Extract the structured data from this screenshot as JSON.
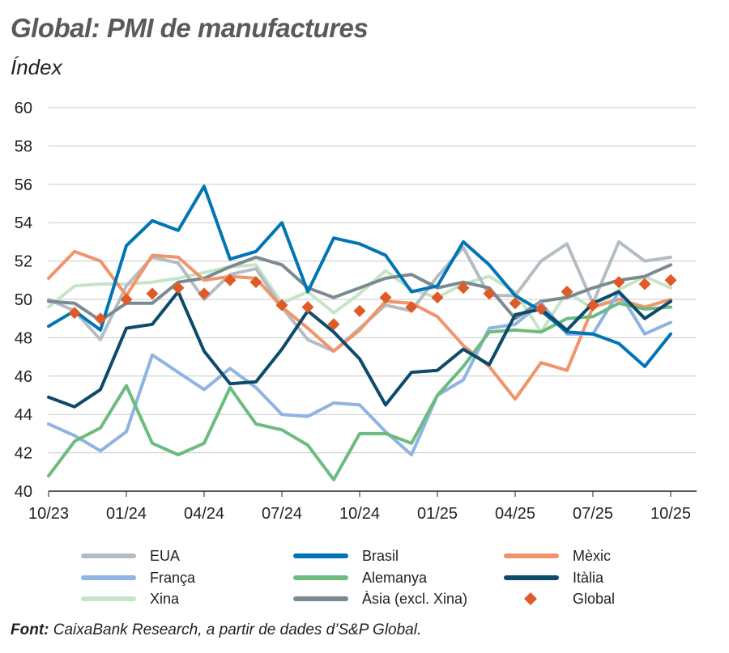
{
  "title": "Global: PMI de manufactures",
  "subtitle": "Índex",
  "source": {
    "label": "Font:",
    "text": "CaixaBank Research, a partir de dades d’S&P Global."
  },
  "chart_data": {
    "type": "line",
    "title": "Global: PMI de manufactures",
    "ylabel": "Índex",
    "ylim": [
      40,
      60
    ],
    "yticks": [
      40,
      42,
      44,
      46,
      48,
      50,
      52,
      54,
      56,
      58,
      60
    ],
    "grid": true,
    "legend_position": "bottom",
    "x": [
      "10/23",
      "11/23",
      "12/23",
      "01/24",
      "02/24",
      "03/24",
      "04/24",
      "05/24",
      "06/24",
      "07/24",
      "08/24",
      "09/24",
      "10/24",
      "11/24",
      "12/24",
      "01/25",
      "02/25",
      "03/25",
      "04/25",
      "05/25",
      "06/25",
      "07/25",
      "08/25",
      "09/25",
      "10/25"
    ],
    "xtick_labels": [
      "10/23",
      "01/24",
      "04/24",
      "07/24",
      "10/24",
      "01/25",
      "04/25",
      "07/25",
      "10/25"
    ],
    "series": [
      {
        "name": "EUA",
        "color": "#b3bec4",
        "values": [
          50.0,
          49.4,
          47.9,
          50.7,
          52.2,
          51.9,
          50.0,
          51.3,
          51.6,
          49.6,
          47.9,
          47.3,
          48.5,
          49.7,
          49.4,
          51.2,
          52.7,
          50.2,
          50.2,
          52.0,
          52.9,
          49.8,
          53.0,
          52.0,
          52.2
        ]
      },
      {
        "name": "Brasil",
        "color": "#0075b5",
        "values": [
          48.6,
          49.4,
          48.4,
          52.8,
          54.1,
          53.6,
          55.9,
          52.1,
          52.5,
          54.0,
          50.4,
          53.2,
          52.9,
          52.3,
          50.4,
          50.7,
          53.0,
          51.8,
          50.2,
          49.4,
          48.3,
          48.2,
          47.7,
          46.5,
          48.2
        ]
      },
      {
        "name": "Mèxic",
        "color": "#f0946a",
        "values": [
          51.1,
          52.5,
          52.0,
          50.2,
          52.3,
          52.2,
          51.0,
          51.2,
          51.1,
          49.6,
          48.5,
          47.3,
          48.4,
          49.9,
          49.8,
          49.1,
          47.6,
          46.5,
          44.8,
          46.7,
          46.3,
          49.6,
          50.0,
          49.6,
          50.0
        ]
      },
      {
        "name": "França",
        "color": "#8fb3e2",
        "values": [
          43.5,
          42.9,
          42.1,
          43.1,
          47.1,
          46.2,
          45.3,
          46.4,
          45.4,
          44.0,
          43.9,
          44.6,
          44.5,
          43.1,
          41.9,
          45.0,
          45.8,
          48.5,
          48.7,
          49.8,
          48.2,
          48.2,
          50.4,
          48.2,
          48.8
        ]
      },
      {
        "name": "Alemanya",
        "color": "#6cbb7f",
        "values": [
          40.8,
          42.6,
          43.3,
          45.5,
          42.5,
          41.9,
          42.5,
          45.4,
          43.5,
          43.2,
          42.4,
          40.6,
          43.0,
          43.0,
          42.5,
          45.0,
          46.5,
          48.3,
          48.4,
          48.3,
          49.0,
          49.1,
          49.8,
          49.5,
          49.6
        ]
      },
      {
        "name": "Itàlia",
        "color": "#0d4a6b",
        "values": [
          44.9,
          44.4,
          45.3,
          48.5,
          48.7,
          50.4,
          47.3,
          45.6,
          45.7,
          47.4,
          49.4,
          48.3,
          46.9,
          44.5,
          46.2,
          46.3,
          47.4,
          46.6,
          49.2,
          49.5,
          48.4,
          49.8,
          50.4,
          49.0,
          49.9
        ]
      },
      {
        "name": "Xina",
        "color": "#c5e5c6",
        "values": [
          49.6,
          50.7,
          50.8,
          50.8,
          50.9,
          51.1,
          51.4,
          51.7,
          51.8,
          49.8,
          50.4,
          49.3,
          50.3,
          51.5,
          50.5,
          50.1,
          50.8,
          51.2,
          50.4,
          48.3,
          50.4,
          49.5,
          50.5,
          51.2,
          50.6
        ]
      },
      {
        "name": "Àsia (excl. Xina)",
        "color": "#7b8a91",
        "values": [
          49.9,
          49.8,
          48.9,
          49.8,
          49.8,
          50.9,
          51.1,
          51.7,
          52.2,
          51.8,
          50.6,
          50.1,
          50.6,
          51.1,
          51.3,
          50.6,
          50.9,
          50.6,
          49.0,
          49.9,
          50.1,
          50.6,
          51.0,
          51.2,
          51.8
        ]
      },
      {
        "name": "Global",
        "color": "#e05a28",
        "marker": "diamond",
        "values": [
          48.8,
          49.3,
          49.0,
          50.0,
          50.3,
          50.6,
          50.3,
          51.0,
          50.9,
          49.7,
          49.6,
          48.7,
          49.4,
          50.1,
          49.6,
          50.1,
          50.6,
          50.3,
          49.8,
          49.5,
          50.4,
          49.7,
          50.9,
          50.8,
          51.0
        ]
      }
    ]
  }
}
